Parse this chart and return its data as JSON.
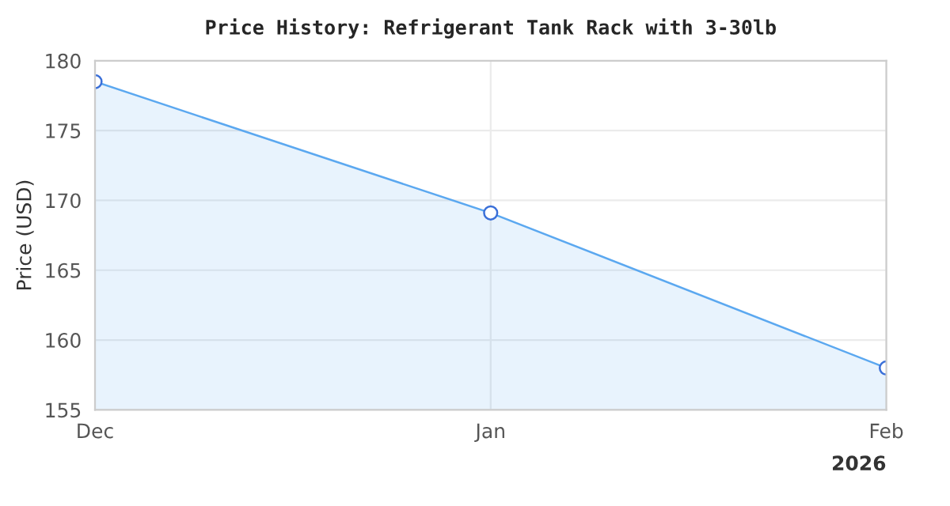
{
  "chart_data": {
    "type": "area",
    "title": "Price History: Refrigerant Tank Rack with 3-30lb",
    "ylabel": "Price (USD)",
    "x": [
      "2025-12-01",
      "2026-01-01",
      "2026-02-01"
    ],
    "series": [
      {
        "color": "#5ba8f0",
        "values": [
          178.5,
          169.1,
          158.0
        ]
      }
    ],
    "xlim": [
      "2025-12-01",
      "2026-02-01"
    ],
    "xticks": [
      {
        "value": "2025-12-01",
        "label": "Dec"
      },
      {
        "value": "2026-01-01",
        "label": "Jan"
      },
      {
        "value": "2026-02-01",
        "label": "Feb"
      }
    ],
    "ylim": [
      155,
      180
    ],
    "yticks": [
      155,
      160,
      165,
      170,
      175,
      180
    ],
    "annotations": [
      "2026"
    ],
    "grid": true,
    "marker": "circle",
    "line_style": "solid"
  }
}
